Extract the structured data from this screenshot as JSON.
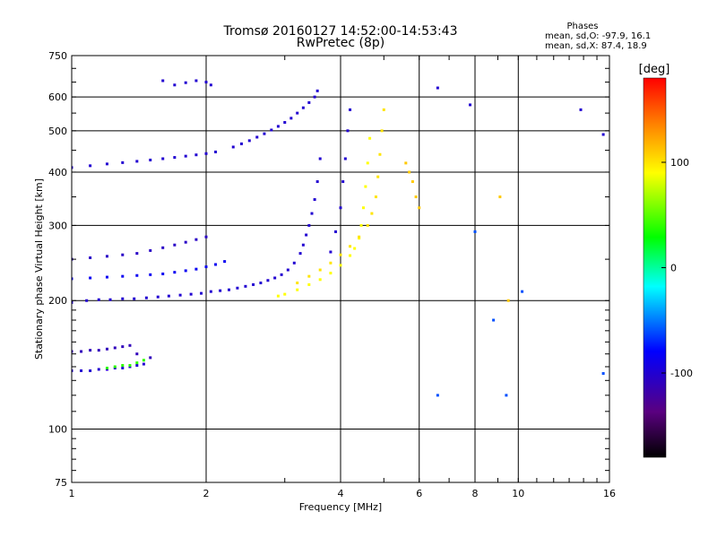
{
  "chart_data": {
    "type": "scatter",
    "title": "Tromsø 20160127 14:52:00-14:53:43",
    "subtitle": "RwPretec (8p)",
    "xlabel": "Frequency [MHz]",
    "ylabel": "Stationary phase Virtual Height [km]",
    "x_scale": "log",
    "y_scale": "log",
    "xlim": [
      1,
      16
    ],
    "ylim": [
      75,
      750
    ],
    "x_ticks": [
      1,
      2,
      4,
      6,
      8,
      10,
      16
    ],
    "y_ticks": [
      75,
      100,
      200,
      300,
      400,
      500,
      600,
      750
    ],
    "grid": true,
    "phases_box": {
      "title": "Phases",
      "line1": "mean, sd,O: -97.9, 16.1",
      "line2": "mean, sd,X:  87.4, 18.9"
    },
    "colorbar": {
      "label": "[deg]",
      "range": [
        -180,
        180
      ],
      "ticks": [
        100,
        0,
        -100
      ],
      "colormap": [
        "#000000",
        "#7a00a0",
        "#0000ff",
        "#00ffff",
        "#00ff00",
        "#ffff00",
        "#ff0000"
      ]
    },
    "series": [
      {
        "x": [
          1.0,
          1.08,
          1.15,
          1.22,
          1.3,
          1.38,
          1.47,
          1.56,
          1.65,
          1.75,
          1.85,
          1.95,
          2.05,
          2.15,
          2.25,
          2.35,
          2.45,
          2.55,
          2.65,
          2.75,
          2.85,
          2.95,
          3.05,
          3.15,
          3.25,
          3.3,
          3.35,
          3.4,
          3.45,
          3.5,
          3.55,
          3.6
        ],
        "y": [
          198,
          200,
          201,
          201,
          202,
          202,
          203,
          204,
          205,
          206,
          207,
          208,
          210,
          211,
          212,
          214,
          216,
          218,
          220,
          223,
          226,
          230,
          236,
          245,
          258,
          270,
          285,
          300,
          320,
          345,
          380,
          430
        ],
        "phase": -100
      },
      {
        "x": [
          1.0,
          1.1,
          1.2,
          1.3,
          1.4,
          1.5,
          1.6,
          1.7,
          1.8,
          1.9,
          2.0,
          2.1,
          2.2
        ],
        "y": [
          225,
          226,
          227,
          228,
          229,
          230,
          231,
          233,
          235,
          237,
          240,
          243,
          247
        ],
        "phase": -85
      },
      {
        "x": [
          1.0,
          1.1,
          1.2,
          1.3,
          1.4,
          1.5,
          1.6,
          1.7,
          1.8,
          1.9,
          2.0
        ],
        "y": [
          250,
          252,
          254,
          256,
          258,
          262,
          266,
          270,
          274,
          278,
          282
        ],
        "phase": -105
      },
      {
        "x": [
          1.0,
          1.1,
          1.2,
          1.3,
          1.4,
          1.5,
          1.6,
          1.7,
          1.8,
          1.9,
          2.0,
          2.1
        ],
        "y": [
          410,
          414,
          418,
          421,
          424,
          427,
          430,
          433,
          436,
          439,
          442,
          446
        ],
        "phase": -100
      },
      {
        "x": [
          2.3,
          2.4,
          2.5,
          2.6,
          2.7,
          2.8,
          2.9,
          3.0,
          3.1,
          3.2,
          3.3,
          3.4,
          3.5,
          3.55
        ],
        "y": [
          458,
          466,
          474,
          483,
          492,
          502,
          512,
          523,
          535,
          550,
          566,
          582,
          600,
          620
        ],
        "phase": -100
      },
      {
        "x": [
          1.0,
          1.05,
          1.1,
          1.15,
          1.2,
          1.25,
          1.3,
          1.35,
          1.4,
          1.45
        ],
        "y": [
          137,
          137,
          137,
          138,
          138,
          139,
          139,
          140,
          141,
          142
        ],
        "phase": -100
      },
      {
        "x": [
          1.0,
          1.05,
          1.1,
          1.15,
          1.2,
          1.25,
          1.3,
          1.35,
          1.4,
          1.5
        ],
        "y": [
          152,
          152,
          153,
          153,
          154,
          155,
          156,
          157,
          150,
          147
        ],
        "phase": -110
      },
      {
        "x": [
          1.2,
          1.25,
          1.3,
          1.35,
          1.4,
          1.45
        ],
        "y": [
          139,
          140,
          141,
          141,
          143,
          145
        ],
        "phase": 40
      },
      {
        "x": [
          2.9,
          3.0,
          3.2,
          3.4,
          3.6,
          3.8,
          4.0,
          4.2,
          4.3,
          4.4,
          4.45,
          4.5,
          4.55,
          4.6,
          4.65
        ],
        "y": [
          205,
          207,
          212,
          218,
          224,
          232,
          242,
          255,
          265,
          280,
          300,
          330,
          370,
          420,
          480
        ],
        "phase": 90
      },
      {
        "x": [
          3.2,
          3.4,
          3.6,
          3.8,
          4.0,
          4.2,
          4.4,
          4.6,
          4.7,
          4.8,
          4.85,
          4.9,
          4.95,
          5.0
        ],
        "y": [
          220,
          228,
          236,
          245,
          256,
          268,
          282,
          300,
          320,
          350,
          390,
          440,
          500,
          560
        ],
        "phase": 100
      },
      {
        "x": [
          3.8,
          3.9,
          4.0,
          4.05,
          4.1,
          4.15,
          4.2
        ],
        "y": [
          260,
          290,
          330,
          380,
          430,
          500,
          560
        ],
        "phase": -100
      },
      {
        "x": [
          1.6,
          1.7,
          1.8,
          1.9,
          2.0,
          2.05,
          6.6,
          7.8,
          13.8,
          15.5
        ],
        "y": [
          655,
          640,
          648,
          655,
          650,
          640,
          630,
          575,
          560,
          490
        ],
        "phase": -100
      },
      {
        "x": [
          8.8,
          10.2,
          15.5,
          6.6,
          8.0,
          9.4
        ],
        "y": [
          180,
          210,
          135,
          120,
          290,
          120
        ],
        "phase": -60
      },
      {
        "x": [
          5.6,
          5.7,
          5.8,
          5.9,
          6.0,
          9.1,
          9.5
        ],
        "y": [
          420,
          400,
          380,
          350,
          330,
          350,
          200
        ],
        "phase": 110
      }
    ]
  }
}
